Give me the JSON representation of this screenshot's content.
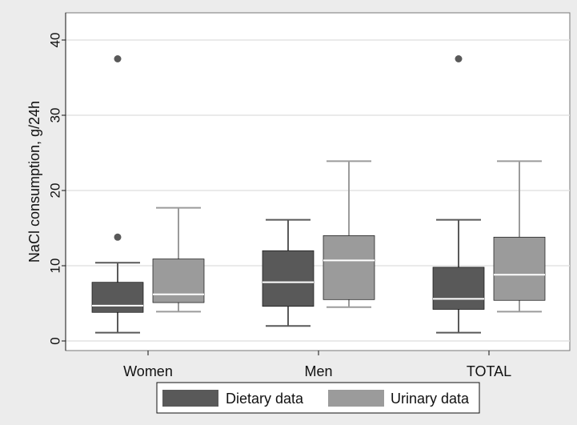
{
  "chart_data": {
    "type": "box",
    "title": "",
    "xlabel": "",
    "ylabel": "NaCl consumption, g/24h",
    "ylim": [
      0,
      40
    ],
    "yticks": [
      0,
      10,
      20,
      30,
      40
    ],
    "grid": true,
    "legend_placement": "bottom-center",
    "categories": [
      "Women",
      "Men",
      "TOTAL"
    ],
    "series": [
      {
        "name": "Dietary data",
        "color": "#595959",
        "boxes": [
          {
            "category": "Women",
            "whisker_low": 1.1,
            "q1": 3.8,
            "median": 4.7,
            "q3": 7.8,
            "whisker_high": 10.4,
            "outliers": [
              13.8,
              37.5
            ]
          },
          {
            "category": "Men",
            "whisker_low": 2.0,
            "q1": 4.6,
            "median": 7.8,
            "q3": 12.0,
            "whisker_high": 16.1,
            "outliers": []
          },
          {
            "category": "TOTAL",
            "whisker_low": 1.1,
            "q1": 4.2,
            "median": 5.6,
            "q3": 9.8,
            "whisker_high": 16.1,
            "outliers": [
              37.5
            ]
          }
        ]
      },
      {
        "name": "Urinary data",
        "color": "#9b9b9b",
        "boxes": [
          {
            "category": "Women",
            "whisker_low": 3.9,
            "q1": 5.1,
            "median": 6.2,
            "q3": 10.9,
            "whisker_high": 17.7,
            "outliers": []
          },
          {
            "category": "Men",
            "whisker_low": 4.5,
            "q1": 5.5,
            "median": 10.7,
            "q3": 14.0,
            "whisker_high": 23.9,
            "outliers": []
          },
          {
            "category": "TOTAL",
            "whisker_low": 3.9,
            "q1": 5.4,
            "median": 8.8,
            "q3": 13.8,
            "whisker_high": 23.9,
            "outliers": []
          }
        ]
      }
    ]
  }
}
